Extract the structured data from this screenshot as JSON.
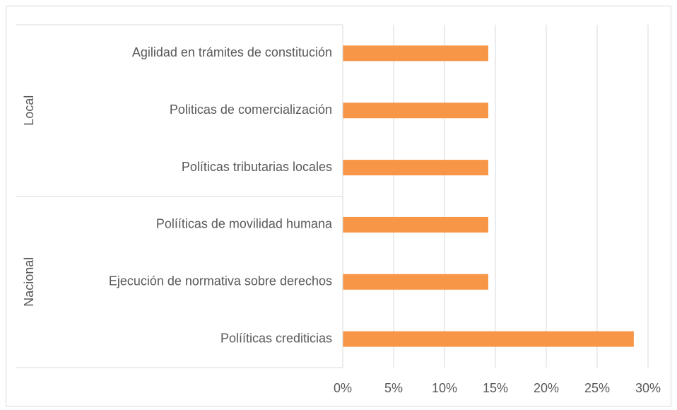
{
  "chart_data": {
    "type": "bar",
    "orientation": "horizontal",
    "color": "#f79646",
    "groups": [
      {
        "label": "Local",
        "categories": [
          "Agilidad en trámites de constitución",
          "Politicas de comercialización",
          "Políticas tributarias locales"
        ],
        "values": [
          14.3,
          14.3,
          14.3
        ]
      },
      {
        "label": "Nacional",
        "categories": [
          "Polííticas de movilidad humana",
          "Ejecución de normativa sobre derechos",
          "Polííticas crediticias"
        ],
        "values": [
          14.3,
          14.3,
          28.6
        ]
      }
    ],
    "xlim": [
      0,
      30
    ],
    "xticks": [
      {
        "value": 0,
        "label": "0%"
      },
      {
        "value": 5,
        "label": "5%"
      },
      {
        "value": 10,
        "label": "10%"
      },
      {
        "value": 15,
        "label": "15%"
      },
      {
        "value": 20,
        "label": "20%"
      },
      {
        "value": 25,
        "label": "25%"
      },
      {
        "value": 30,
        "label": "30%"
      }
    ],
    "grid": true
  }
}
